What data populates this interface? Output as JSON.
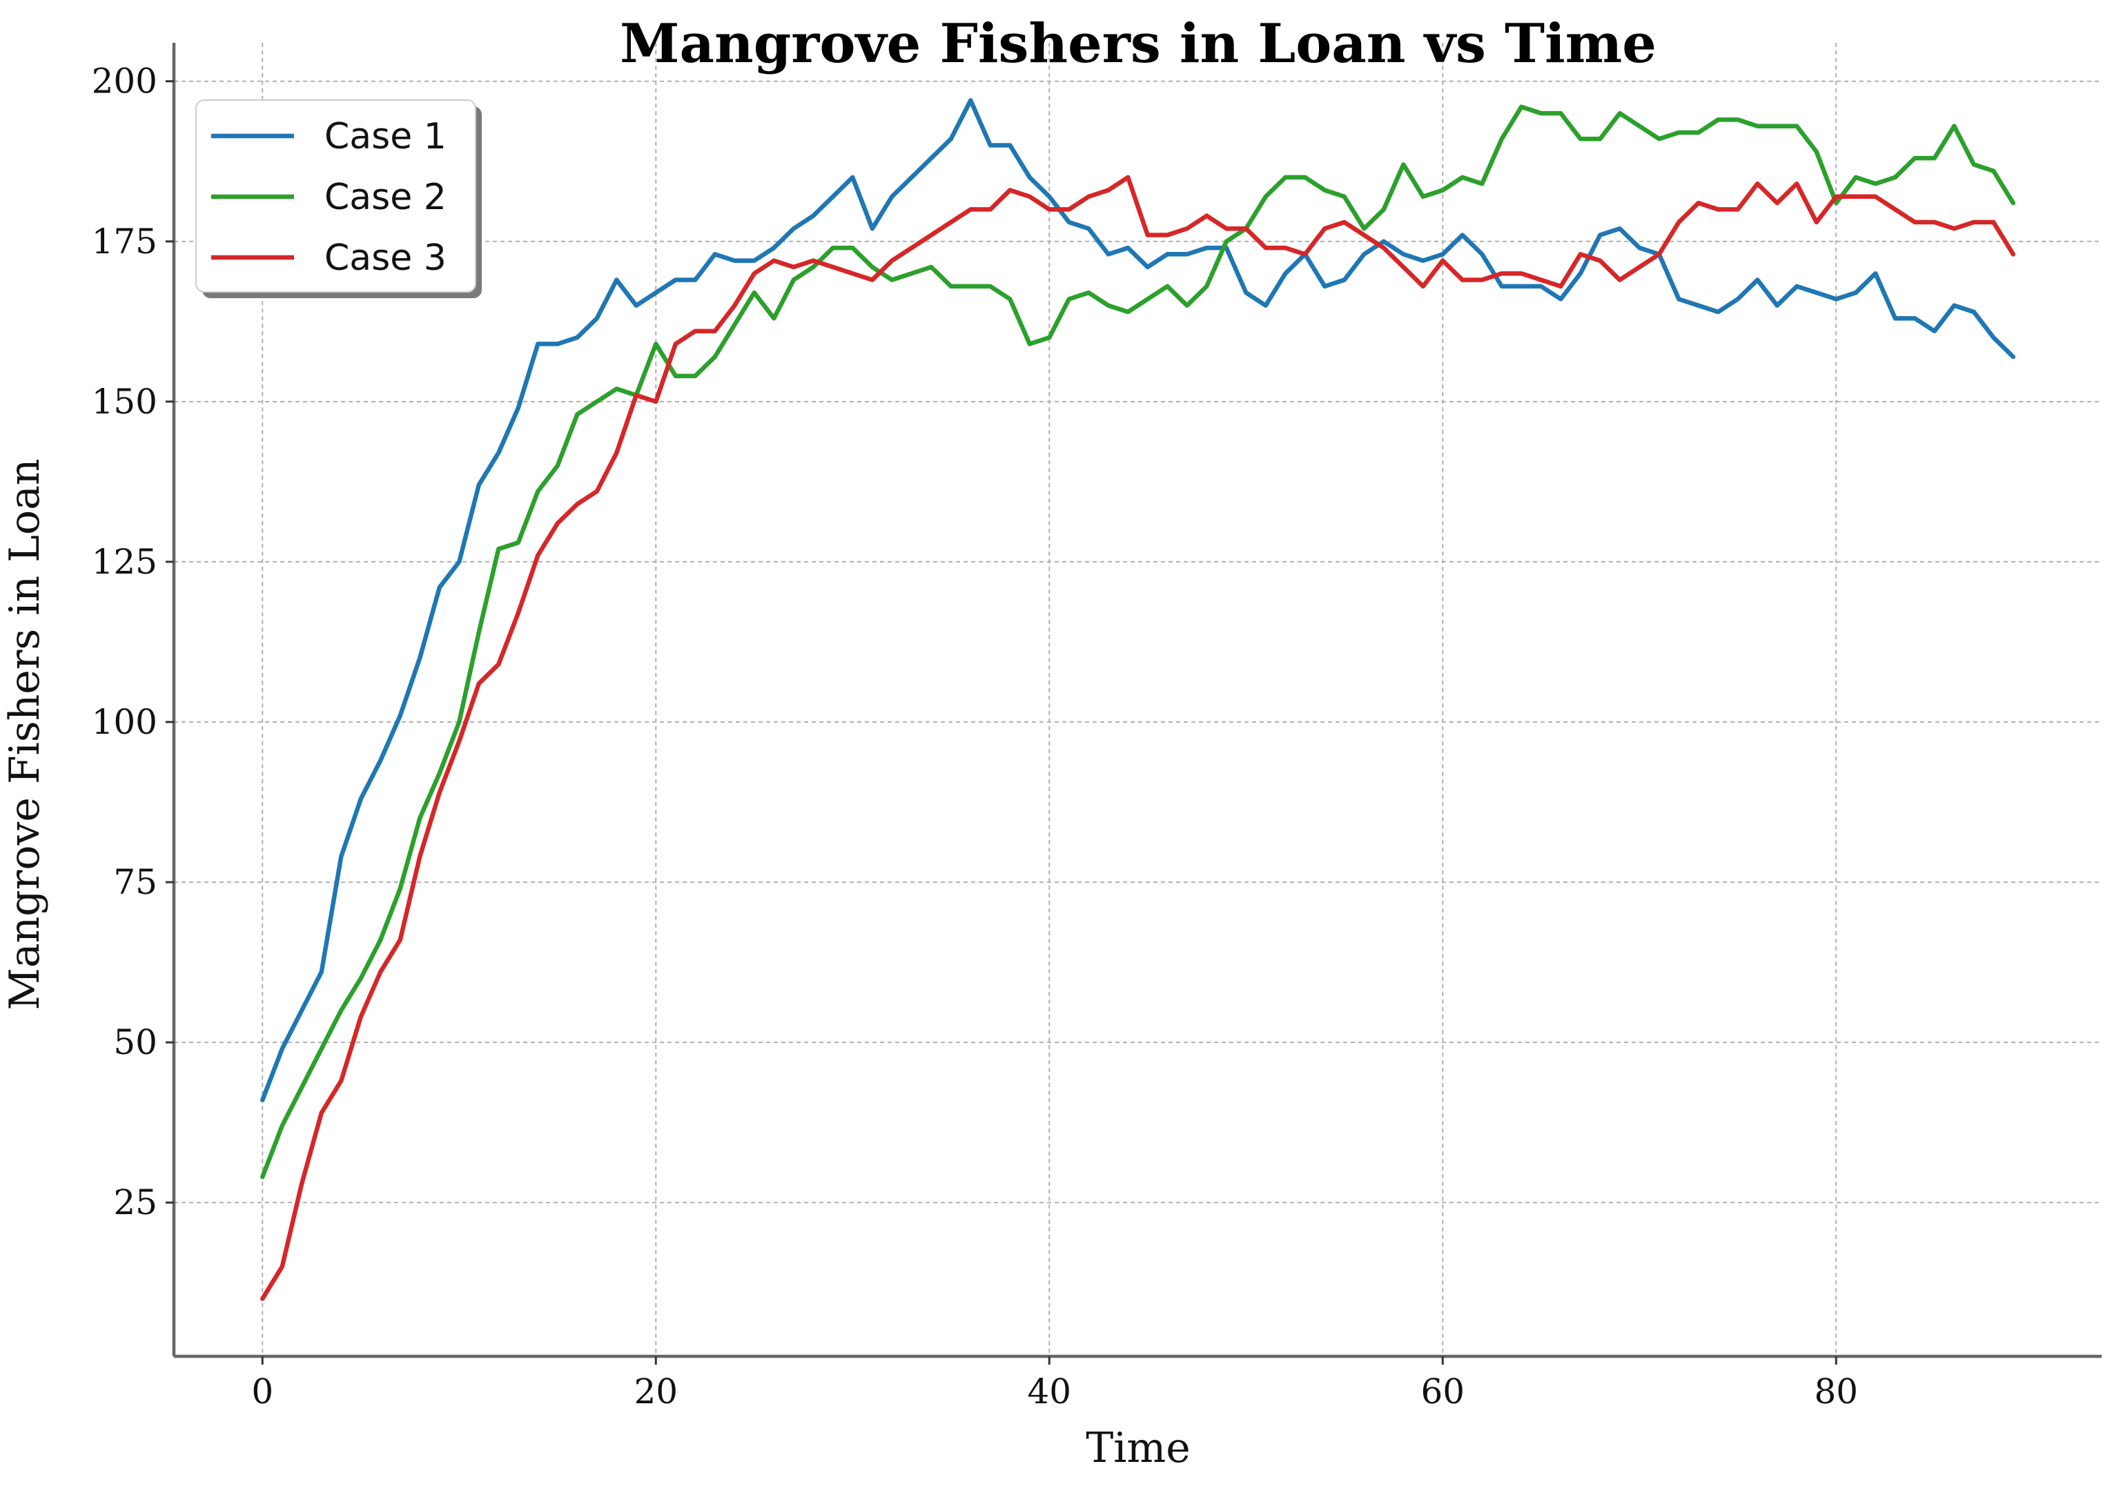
{
  "chart_data": {
    "type": "line",
    "title": "Mangrove Fishers in Loan vs Time",
    "xlabel": "Time",
    "ylabel": "Mangrove Fishers in Loan",
    "xlim": [
      -4.5,
      93.5
    ],
    "ylim": [
      1,
      206
    ],
    "xticks": [
      0,
      20,
      40,
      60,
      80
    ],
    "yticks": [
      25,
      50,
      75,
      100,
      125,
      150,
      175,
      200
    ],
    "grid": true,
    "legend_position": "top-left",
    "x": [
      0,
      1,
      2,
      3,
      4,
      5,
      6,
      7,
      8,
      9,
      10,
      11,
      12,
      13,
      14,
      15,
      16,
      17,
      18,
      19,
      20,
      21,
      22,
      23,
      24,
      25,
      26,
      27,
      28,
      29,
      30,
      31,
      32,
      33,
      34,
      35,
      36,
      37,
      38,
      39,
      40,
      41,
      42,
      43,
      44,
      45,
      46,
      47,
      48,
      49,
      50,
      51,
      52,
      53,
      54,
      55,
      56,
      57,
      58,
      59,
      60,
      61,
      62,
      63,
      64,
      65,
      66,
      67,
      68,
      69,
      70,
      71,
      72,
      73,
      74,
      75,
      76,
      77,
      78,
      79,
      80,
      81,
      82,
      83,
      84,
      85,
      86,
      87,
      88,
      89
    ],
    "series": [
      {
        "name": "Case 1",
        "color": "#1f77b4",
        "values": [
          41,
          49,
          55,
          61,
          79,
          88,
          94,
          101,
          110,
          121,
          125,
          137,
          142,
          149,
          159,
          159,
          160,
          163,
          169,
          165,
          167,
          169,
          169,
          173,
          172,
          172,
          174,
          177,
          179,
          182,
          185,
          177,
          182,
          185,
          188,
          191,
          197,
          190,
          190,
          185,
          182,
          178,
          177,
          173,
          174,
          171,
          173,
          173,
          174,
          174,
          167,
          165,
          170,
          173,
          168,
          169,
          173,
          175,
          173,
          172,
          173,
          176,
          173,
          168,
          168,
          168,
          166,
          170,
          176,
          177,
          174,
          173,
          166,
          165,
          164,
          166,
          169,
          165,
          168,
          167,
          166,
          167,
          170,
          163,
          163,
          161,
          165,
          164,
          160,
          157
        ]
      },
      {
        "name": "Case 2",
        "color": "#2ca02c",
        "values": [
          29,
          37,
          43,
          49,
          55,
          60,
          66,
          74,
          85,
          92,
          100,
          114,
          127,
          128,
          136,
          140,
          148,
          150,
          152,
          151,
          159,
          154,
          154,
          157,
          162,
          167,
          163,
          169,
          171,
          174,
          174,
          171,
          169,
          170,
          171,
          168,
          168,
          168,
          166,
          159,
          160,
          166,
          167,
          165,
          164,
          166,
          168,
          165,
          168,
          175,
          177,
          182,
          185,
          185,
          183,
          182,
          177,
          180,
          187,
          182,
          183,
          185,
          184,
          191,
          196,
          195,
          195,
          191,
          191,
          195,
          193,
          191,
          192,
          192,
          194,
          194,
          193,
          193,
          193,
          189,
          181,
          185,
          184,
          185,
          188,
          188,
          193,
          187,
          186,
          181
        ]
      },
      {
        "name": "Case 3",
        "color": "#d62728",
        "values": [
          10,
          15,
          28,
          39,
          44,
          54,
          61,
          66,
          79,
          89,
          97,
          106,
          109,
          117,
          126,
          131,
          134,
          136,
          142,
          151,
          150,
          159,
          161,
          161,
          165,
          170,
          172,
          171,
          172,
          171,
          170,
          169,
          172,
          174,
          176,
          178,
          180,
          180,
          183,
          182,
          180,
          180,
          182,
          183,
          185,
          176,
          176,
          177,
          179,
          177,
          177,
          174,
          174,
          173,
          177,
          178,
          176,
          174,
          171,
          168,
          172,
          169,
          169,
          170,
          170,
          169,
          168,
          173,
          172,
          169,
          171,
          173,
          178,
          181,
          180,
          180,
          184,
          181,
          184,
          178,
          182,
          182,
          182,
          180,
          178,
          178,
          177,
          178,
          178,
          173
        ]
      }
    ]
  }
}
